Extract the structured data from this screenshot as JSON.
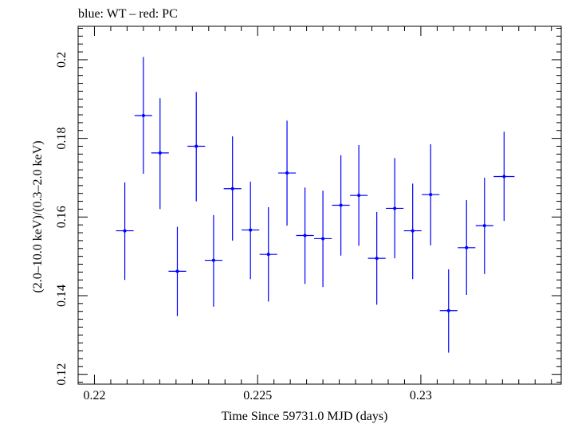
{
  "chart_data": {
    "type": "scatter",
    "title": "blue: WT – red: PC",
    "xlabel": "Time Since 59731.0 MJD (days)",
    "ylabel": "(2.0–10.0 keV)/(0.3–2.0 keV)",
    "xlim": [
      0.2195,
      0.2343
    ],
    "ylim": [
      0.1175,
      0.2085
    ],
    "x_ticks": [
      0.22,
      0.225,
      0.23
    ],
    "x_tick_labels": [
      "0.22",
      "0.225",
      "0.23"
    ],
    "y_ticks": [
      0.12,
      0.14,
      0.16,
      0.18,
      0.2
    ],
    "y_tick_labels": [
      "0.12",
      "0.14",
      "0.16",
      "0.18",
      "0.2"
    ],
    "grid": false,
    "series": [
      {
        "color": "#0000ff",
        "points": [
          {
            "x": 0.22093,
            "y": 0.1565,
            "xerr": 0.00027,
            "ylo": 0.144,
            "yhi": 0.1688
          },
          {
            "x": 0.2215,
            "y": 0.1858,
            "xerr": 0.00027,
            "ylo": 0.171,
            "yhi": 0.2007
          },
          {
            "x": 0.22201,
            "y": 0.1763,
            "xerr": 0.00027,
            "ylo": 0.162,
            "yhi": 0.1902
          },
          {
            "x": 0.22254,
            "y": 0.1462,
            "xerr": 0.00027,
            "ylo": 0.1348,
            "yhi": 0.1575
          },
          {
            "x": 0.22312,
            "y": 0.178,
            "xerr": 0.00027,
            "ylo": 0.164,
            "yhi": 0.1918
          },
          {
            "x": 0.22365,
            "y": 0.149,
            "xerr": 0.00027,
            "ylo": 0.1372,
            "yhi": 0.1605
          },
          {
            "x": 0.22423,
            "y": 0.1672,
            "xerr": 0.00027,
            "ylo": 0.154,
            "yhi": 0.1805
          },
          {
            "x": 0.22478,
            "y": 0.1567,
            "xerr": 0.00027,
            "ylo": 0.1442,
            "yhi": 0.169
          },
          {
            "x": 0.22533,
            "y": 0.1505,
            "xerr": 0.00027,
            "ylo": 0.1385,
            "yhi": 0.1625
          },
          {
            "x": 0.2259,
            "y": 0.1712,
            "xerr": 0.00027,
            "ylo": 0.1578,
            "yhi": 0.1845
          },
          {
            "x": 0.22645,
            "y": 0.1553,
            "xerr": 0.00027,
            "ylo": 0.143,
            "yhi": 0.1675
          },
          {
            "x": 0.227,
            "y": 0.1545,
            "xerr": 0.00027,
            "ylo": 0.1422,
            "yhi": 0.1667
          },
          {
            "x": 0.22755,
            "y": 0.163,
            "xerr": 0.00027,
            "ylo": 0.1502,
            "yhi": 0.1757
          },
          {
            "x": 0.2281,
            "y": 0.1655,
            "xerr": 0.00027,
            "ylo": 0.1527,
            "yhi": 0.1783
          },
          {
            "x": 0.22865,
            "y": 0.1495,
            "xerr": 0.00027,
            "ylo": 0.1377,
            "yhi": 0.1613
          },
          {
            "x": 0.2292,
            "y": 0.1622,
            "xerr": 0.00027,
            "ylo": 0.1495,
            "yhi": 0.175
          },
          {
            "x": 0.22975,
            "y": 0.1565,
            "xerr": 0.00027,
            "ylo": 0.1442,
            "yhi": 0.1685
          },
          {
            "x": 0.2303,
            "y": 0.1657,
            "xerr": 0.00027,
            "ylo": 0.1528,
            "yhi": 0.1785
          },
          {
            "x": 0.23085,
            "y": 0.1362,
            "xerr": 0.00027,
            "ylo": 0.1255,
            "yhi": 0.1467
          },
          {
            "x": 0.2314,
            "y": 0.1522,
            "xerr": 0.00027,
            "ylo": 0.1402,
            "yhi": 0.1643
          },
          {
            "x": 0.23195,
            "y": 0.1578,
            "xerr": 0.00027,
            "ylo": 0.1455,
            "yhi": 0.17
          },
          {
            "x": 0.23255,
            "y": 0.1703,
            "xerr": 0.00032,
            "ylo": 0.159,
            "yhi": 0.1817
          }
        ]
      }
    ]
  }
}
